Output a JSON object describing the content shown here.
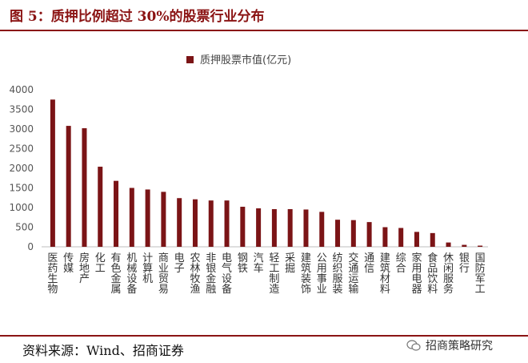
{
  "title": "图 5：质押比例超过 30%的股票行业分布",
  "source": "资料来源：Wind、招商证券",
  "watermark": "招商策略研究",
  "colors": {
    "bar": "#7b1416",
    "accent": "#8b1414",
    "grid": "#d9d9d9"
  },
  "chart_data": {
    "type": "bar",
    "title": "",
    "series": [
      {
        "name": "质押股票市值(亿元)",
        "values": [
          3750,
          3080,
          3020,
          2040,
          1680,
          1500,
          1460,
          1400,
          1240,
          1210,
          1180,
          1180,
          1020,
          980,
          960,
          960,
          950,
          890,
          690,
          680,
          630,
          500,
          480,
          380,
          350,
          110,
          50,
          30
        ]
      }
    ],
    "categories": [
      "医药生物",
      "传媒",
      "房地产",
      "化工",
      "有色金属",
      "机械设备",
      "计算机",
      "商业贸易",
      "电子",
      "农林牧渔",
      "非银金融",
      "电气设备",
      "钢铁",
      "汽车",
      "轻工制造",
      "采掘",
      "建筑装饰",
      "公用事业",
      "纺织服装",
      "交通运输",
      "通信",
      "建筑材料",
      "综合",
      "家用电器",
      "食品饮料",
      "休闲服务",
      "银行",
      "国防军工"
    ],
    "yticks": [
      0,
      500,
      1000,
      1500,
      2000,
      2500,
      3000,
      3500,
      4000
    ],
    "ylim": [
      0,
      4000
    ],
    "xlabel": "",
    "ylabel": "",
    "legend": "top-center",
    "grid": false
  }
}
